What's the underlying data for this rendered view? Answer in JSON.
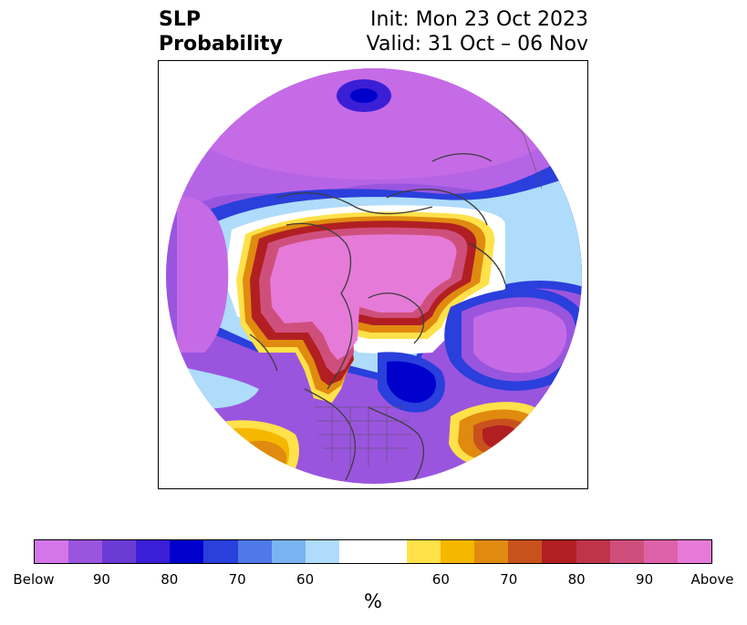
{
  "title": {
    "left_line1": "SLP",
    "left_line2": "Probability",
    "right_line1": "Init: Mon 23 Oct 2023",
    "right_line2": "Valid: 31 Oct – 06 Nov"
  },
  "colorbar": {
    "unit_label": "%",
    "colors": [
      "#d576e8",
      "#9a55de",
      "#6b3bd6",
      "#3a1fd6",
      "#0000cc",
      "#2a3fdb",
      "#4f78e8",
      "#7ab4f2",
      "#aedcfa",
      "#ffffff",
      "#ffffff",
      "#ffe14a",
      "#f5b700",
      "#e08a10",
      "#c9521c",
      "#b11f22",
      "#c0344a",
      "#cf4f7c",
      "#dd62a9",
      "#e67ad8"
    ],
    "ticks": [
      {
        "label": "Below"
      },
      {
        "label": "90"
      },
      {
        "label": "80"
      },
      {
        "label": "70"
      },
      {
        "label": "60"
      },
      {
        "label": "60"
      },
      {
        "label": "70"
      },
      {
        "label": "80"
      },
      {
        "label": "90"
      },
      {
        "label": "Above"
      }
    ]
  },
  "map": {
    "projection": "north-polar-stereographic",
    "variable": "sea level pressure probability",
    "features": [
      {
        "name": "arctic-below-normal",
        "category": "Below",
        "color": "#c66be6"
      },
      {
        "name": "north-atlantic-below-normal",
        "category": "Below",
        "color": "#c66be6"
      },
      {
        "name": "north-pacific-below-normal",
        "category": "Below",
        "color": "#c66be6"
      },
      {
        "name": "eastern-canada-below-normal",
        "category": "Below",
        "color": "#0000cc"
      },
      {
        "name": "siberia-above-normal",
        "category": "Above",
        "color": "#e67ad8"
      },
      {
        "name": "subtropical-atlantic-above-normal",
        "category": "Above",
        "color": "#b11f22"
      },
      {
        "name": "subtropical-pacific-above-normal",
        "category": "Above",
        "color": "#e08a10"
      }
    ]
  }
}
